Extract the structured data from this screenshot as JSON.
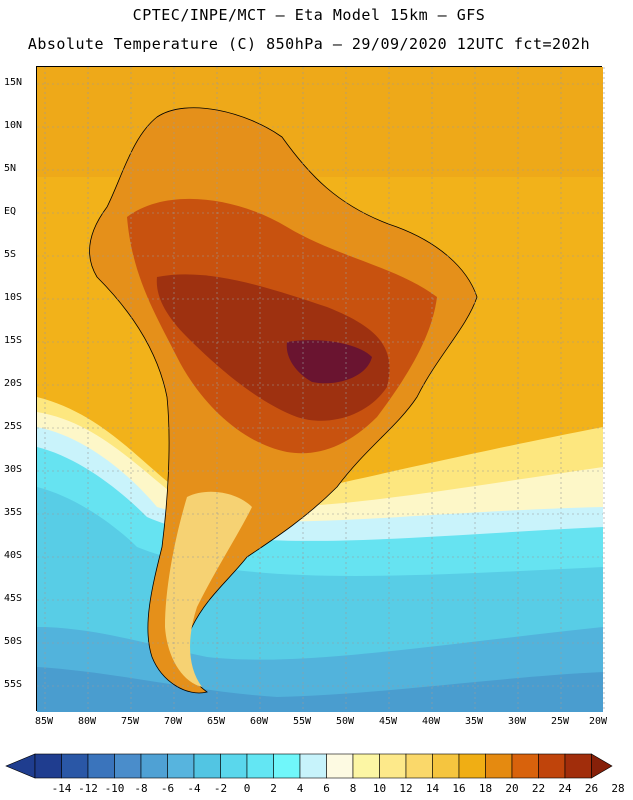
{
  "header": {
    "line1": "CPTEC/INPE/MCT –  Eta Model 15km – GFS",
    "line2": "Absolute Temperature (C) 850hPa – 29/09/2020 12UTC fct=202h"
  },
  "map": {
    "latitude_labels": [
      "15N",
      "10N",
      "5N",
      "EQ",
      "5S",
      "10S",
      "15S",
      "20S",
      "25S",
      "30S",
      "35S",
      "40S",
      "45S",
      "50S",
      "55S"
    ],
    "longitude_labels": [
      "85W",
      "80W",
      "75W",
      "70W",
      "65W",
      "60W",
      "55W",
      "50W",
      "45W",
      "40W",
      "35W",
      "30W",
      "25W",
      "20W"
    ]
  },
  "colorbar": {
    "ticks": [
      "-14",
      "-12",
      "-10",
      "-8",
      "-6",
      "-4",
      "-2",
      "0",
      "2",
      "4",
      "6",
      "8",
      "10",
      "12",
      "14",
      "16",
      "18",
      "20",
      "22",
      "24",
      "26",
      "28"
    ],
    "colors": [
      "#1f3d8f",
      "#2a57a6",
      "#3a74bc",
      "#4a8dcb",
      "#4fa1d4",
      "#57b4de",
      "#52c5e3",
      "#5ad7ec",
      "#63e6f3",
      "#70f7fa",
      "#c7f3fb",
      "#fdfae2",
      "#fcf6a4",
      "#fde98a",
      "#fad86a",
      "#f5c53f",
      "#f0ae14",
      "#e58a10",
      "#d8620c",
      "#c0440b",
      "#a12d0b",
      "#862009"
    ]
  }
}
